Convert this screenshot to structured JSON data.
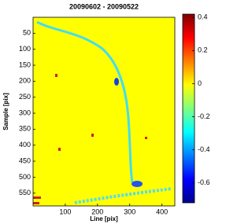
{
  "chart_data": {
    "type": "heatmap",
    "title": "20090602 - 20090522",
    "x_label": "Line [pix]",
    "y_label": "Sample [pix]",
    "xlim": [
      0,
      440
    ],
    "xticks": [
      100,
      200,
      300,
      400
    ],
    "ylim": [
      0,
      590
    ],
    "yticks": [
      50,
      100,
      150,
      200,
      250,
      300,
      350,
      400,
      450,
      500,
      550
    ],
    "y_inverted": true,
    "colormap": "jet",
    "clim": [
      -0.72,
      0.42
    ],
    "cticks": [
      0.4,
      0.2,
      0,
      -0.2,
      -0.4,
      -0.6
    ]
  }
}
